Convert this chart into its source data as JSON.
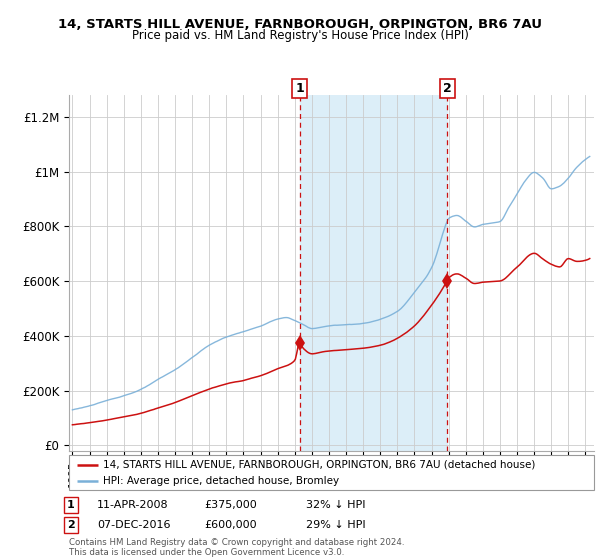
{
  "title": "14, STARTS HILL AVENUE, FARNBOROUGH, ORPINGTON, BR6 7AU",
  "subtitle": "Price paid vs. HM Land Registry's House Price Index (HPI)",
  "ylabel_ticks": [
    "£0",
    "£200K",
    "£400K",
    "£600K",
    "£800K",
    "£1M",
    "£1.2M"
  ],
  "ytick_values": [
    0,
    200000,
    400000,
    600000,
    800000,
    1000000,
    1200000
  ],
  "ylim": [
    -20000,
    1280000
  ],
  "xlim_start": 1994.8,
  "xlim_end": 2025.5,
  "hpi_color": "#7ab0d8",
  "price_color": "#cc1111",
  "marker1_year": 2008.28,
  "marker1_price": 375000,
  "marker1_label": "1",
  "marker2_year": 2016.92,
  "marker2_price": 600000,
  "marker2_label": "2",
  "shade_color": "#dceef8",
  "legend_line1": "14, STARTS HILL AVENUE, FARNBOROUGH, ORPINGTON, BR6 7AU (detached house)",
  "legend_line2": "HPI: Average price, detached house, Bromley",
  "annotation1_date": "11-APR-2008",
  "annotation1_price": "£375,000",
  "annotation1_extra": "32% ↓ HPI",
  "annotation2_date": "07-DEC-2016",
  "annotation2_price": "£600,000",
  "annotation2_extra": "29% ↓ HPI",
  "footer": "Contains HM Land Registry data © Crown copyright and database right 2024.\nThis data is licensed under the Open Government Licence v3.0.",
  "background_color": "#ffffff",
  "grid_color": "#cccccc"
}
